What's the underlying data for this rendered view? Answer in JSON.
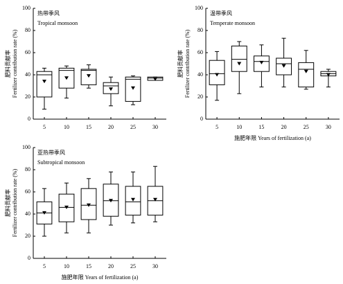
{
  "chart_data": [
    {
      "type": "box",
      "title": "热带季风",
      "subtitle": "Tropical monsoon",
      "ylabel": [
        "肥料贡献率",
        "Fertilizer contribution rate (%)"
      ],
      "categories": [
        "5",
        "10",
        "15",
        "20",
        "25",
        "30"
      ],
      "min": [
        9,
        19,
        28,
        12,
        13,
        35
      ],
      "q1": [
        20,
        28,
        31,
        23,
        16,
        35
      ],
      "median": [
        40,
        44,
        44,
        30,
        36,
        37
      ],
      "q3": [
        43,
        46,
        45,
        33,
        38,
        38
      ],
      "max": [
        46,
        48,
        49,
        38,
        39,
        38
      ],
      "mean": [
        34,
        37,
        39,
        27,
        28,
        36
      ],
      "ylim": [
        0,
        100
      ],
      "yticks": [
        0,
        20,
        40,
        60,
        80,
        100
      ]
    },
    {
      "type": "box",
      "title": "温带季风",
      "subtitle": "Temperate monsoon",
      "ylabel": [
        "肥料贡献率",
        "Fertilizer contribution rate (%)"
      ],
      "xlabel": "施肥年限 Years of fertilization (a)",
      "categories": [
        "5",
        "10",
        "15",
        "20",
        "25",
        "30"
      ],
      "min": [
        17,
        23,
        29,
        29,
        27,
        29
      ],
      "q1": [
        31,
        43,
        43,
        40,
        29,
        39
      ],
      "median": [
        41,
        54,
        52,
        50,
        45,
        41
      ],
      "q3": [
        53,
        66,
        57,
        55,
        51,
        43
      ],
      "max": [
        61,
        70,
        67,
        73,
        62,
        45
      ],
      "mean": [
        40,
        50,
        51,
        48,
        43,
        40
      ],
      "ylim": [
        0,
        100
      ],
      "yticks": [
        0,
        20,
        40,
        60,
        80,
        100
      ]
    },
    {
      "type": "box",
      "title": "亚热带季风",
      "subtitle": "Subtropical monsoon",
      "ylabel": [
        "肥料贡献率",
        "Fertilizer contribution rate (%)"
      ],
      "xlabel": "施肥年限 Years of fertilization (a)",
      "categories": [
        "5",
        "10",
        "15",
        "20",
        "25",
        "30"
      ],
      "min": [
        20,
        23,
        23,
        30,
        32,
        33
      ],
      "q1": [
        31,
        33,
        35,
        38,
        39,
        39
      ],
      "median": [
        41,
        46,
        48,
        52,
        51,
        52
      ],
      "q3": [
        51,
        58,
        63,
        67,
        65,
        65
      ],
      "max": [
        63,
        68,
        72,
        78,
        78,
        83
      ],
      "mean": [
        41,
        46,
        48,
        52,
        53,
        53
      ],
      "ylim": [
        0,
        100
      ],
      "yticks": [
        0,
        20,
        40,
        60,
        80,
        100
      ]
    }
  ]
}
